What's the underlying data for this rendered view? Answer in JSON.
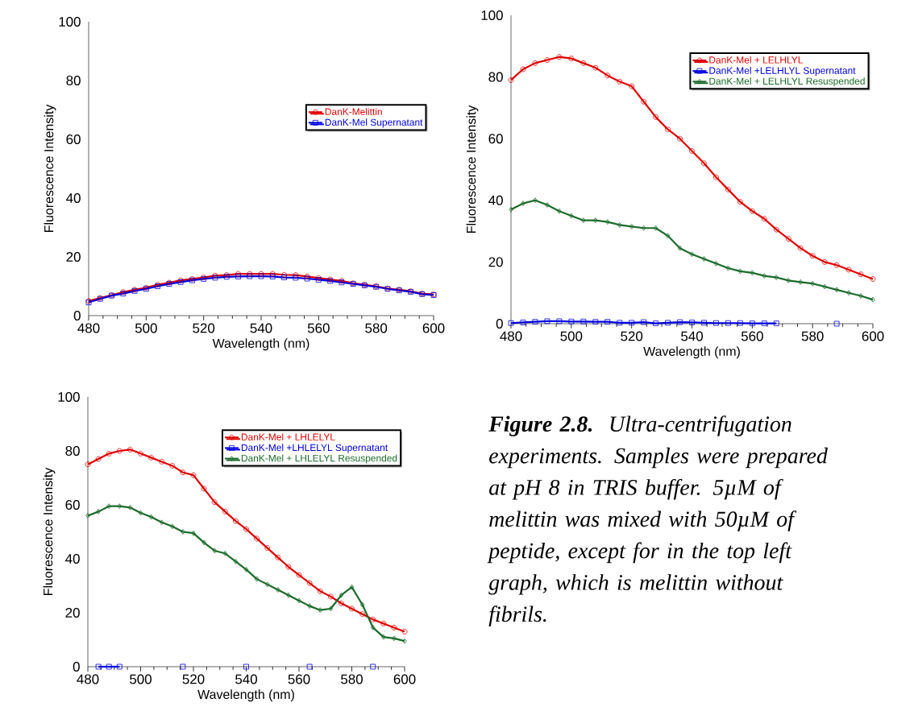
{
  "chart_data": [
    {
      "type": "line",
      "xlabel": "Wavelength (nm)",
      "ylabel": "Fluorescence Intensity",
      "xlim": [
        480,
        600
      ],
      "ylim": [
        0,
        100
      ],
      "xticks": [
        480,
        500,
        520,
        540,
        560,
        580,
        600
      ],
      "yticks": [
        0,
        20,
        40,
        60,
        80,
        100
      ],
      "legend": "right",
      "line_style": "solid",
      "x": [
        480,
        484,
        488,
        492,
        496,
        500,
        504,
        508,
        512,
        516,
        520,
        524,
        528,
        532,
        536,
        540,
        544,
        548,
        552,
        556,
        560,
        564,
        568,
        572,
        576,
        580,
        584,
        588,
        592,
        596,
        600
      ],
      "series": [
        {
          "name": "DanK-Melittin",
          "color": "#e00000",
          "marker": "circle",
          "values": [
            5,
            6,
            7,
            8,
            8.8,
            9.5,
            10.5,
            11.2,
            12,
            12.5,
            13,
            13.6,
            13.8,
            14.2,
            14.2,
            14.2,
            14.2,
            13.9,
            13.8,
            13.3,
            12.8,
            12.3,
            11.8,
            11,
            10.5,
            10,
            9.2,
            8.8,
            8.3,
            7.5,
            7.2
          ]
        },
        {
          "name": "DanK-Mel Supernatant",
          "color": "#0000e0",
          "marker": "square",
          "values": [
            4.5,
            5.7,
            6.8,
            7.5,
            8.4,
            9.1,
            10,
            10.8,
            11.4,
            12,
            12.5,
            12.9,
            13.2,
            13.3,
            13.4,
            13.4,
            13.3,
            13,
            12.9,
            12.6,
            12.2,
            11.8,
            11.3,
            10.8,
            10.3,
            9.8,
            9.1,
            8.6,
            8.1,
            7.3,
            7.0
          ]
        }
      ]
    },
    {
      "type": "line",
      "xlabel": "Wavelength (nm)",
      "ylabel": "Fluorescence Intensity",
      "xlim": [
        480,
        600
      ],
      "ylim": [
        0,
        100
      ],
      "xticks": [
        480,
        500,
        520,
        540,
        560,
        580,
        600
      ],
      "yticks": [
        0,
        20,
        40,
        60,
        80,
        100
      ],
      "legend": "top right",
      "line_style": "solid",
      "x": [
        480,
        484,
        488,
        492,
        496,
        500,
        504,
        508,
        512,
        516,
        520,
        524,
        528,
        532,
        536,
        540,
        544,
        548,
        552,
        556,
        560,
        564,
        568,
        572,
        576,
        580,
        584,
        588,
        592,
        596,
        600
      ],
      "series": [
        {
          "name": "DanK-Mel + LELHLYL",
          "color": "#e00000",
          "marker": "circle",
          "values": [
            79,
            82.5,
            84.5,
            85.5,
            86.5,
            86,
            84.5,
            83,
            80.5,
            78.5,
            77,
            72,
            67,
            63,
            60,
            56,
            52,
            47.5,
            43.5,
            39.5,
            36.5,
            34,
            30.5,
            27.5,
            24.5,
            22,
            20,
            19,
            17.5,
            16,
            14.5
          ]
        },
        {
          "name": "DanK-Mel +LELHLYL Supernatant",
          "color": "#0000e0",
          "marker": "square",
          "values": [
            0.2,
            0.4,
            0.6,
            0.8,
            0.8,
            0.7,
            0.7,
            0.6,
            0.6,
            0.3,
            0.3,
            0.5,
            0.1,
            0.3,
            0.5,
            0.4,
            0.3,
            0.2,
            0.2,
            0.2,
            0.1,
            0.1,
            0.1,
            null,
            null,
            null,
            null,
            0,
            null,
            null,
            null
          ]
        },
        {
          "name": "DanK-Mel + LELHLYL Resuspended",
          "color": "#1a6b2a",
          "marker": "diamond",
          "values": [
            37,
            39,
            40,
            38.5,
            36.5,
            35,
            33.5,
            33.5,
            33,
            32,
            31.5,
            31,
            31,
            28.5,
            24.5,
            22.5,
            21,
            19.5,
            18,
            17,
            16.5,
            15.5,
            15,
            14,
            13.5,
            13,
            12,
            11,
            10,
            9,
            7.8
          ]
        }
      ]
    },
    {
      "type": "line",
      "xlabel": "Wavelength (nm)",
      "ylabel": "Fluorescence Intensity",
      "xlim": [
        480,
        600
      ],
      "ylim": [
        0,
        100
      ],
      "xticks": [
        480,
        500,
        520,
        540,
        560,
        580,
        600
      ],
      "yticks": [
        0,
        20,
        40,
        60,
        80,
        100
      ],
      "legend": "top right",
      "line_style": "solid",
      "x": [
        480,
        484,
        488,
        492,
        496,
        500,
        504,
        508,
        512,
        516,
        520,
        524,
        528,
        532,
        536,
        540,
        544,
        548,
        552,
        556,
        560,
        564,
        568,
        572,
        576,
        580,
        584,
        588,
        592,
        596,
        600
      ],
      "series": [
        {
          "name": "DanK-Mel + LHLELYL",
          "color": "#e00000",
          "marker": "circle",
          "values": [
            75,
            77,
            79,
            80,
            80.5,
            79,
            77.5,
            76,
            74.5,
            72,
            71,
            66,
            61,
            57.5,
            54,
            51,
            47.5,
            44,
            40.5,
            37,
            34,
            31,
            28,
            26,
            23.5,
            21.5,
            19.5,
            17.5,
            16,
            14.5,
            13
          ]
        },
        {
          "name": "DanK-Mel +LHLELYL Supernatant",
          "color": "#0000e0",
          "marker": "square",
          "values": [
            null,
            0,
            0,
            0,
            null,
            null,
            null,
            null,
            null,
            0,
            null,
            null,
            null,
            null,
            null,
            0,
            null,
            null,
            null,
            null,
            null,
            0,
            null,
            null,
            null,
            null,
            null,
            0,
            null,
            null,
            null
          ]
        },
        {
          "name": "DanK-Mel + LHLELYL Resuspended",
          "color": "#1a6b2a",
          "marker": "diamond",
          "values": [
            56,
            57.5,
            59.5,
            59.5,
            59,
            57,
            55.5,
            53.5,
            52,
            50,
            49.5,
            46,
            43,
            42,
            39,
            36,
            32.5,
            30.5,
            28.5,
            26.5,
            24.5,
            22.5,
            21,
            21.5,
            26.5,
            29.5,
            23,
            14.5,
            11,
            10.5,
            9.5
          ]
        }
      ]
    },
    {
      "type": "other",
      "title": "Figure 2.8.",
      "annotations": [
        "Ultra-centrifugation experiments.  Samples were prepared at pH 8 in TRIS buffer. 5µM of melittin was mixed with 50µM of peptide, except for in the top left graph, which is melittin without fibrils."
      ]
    }
  ]
}
